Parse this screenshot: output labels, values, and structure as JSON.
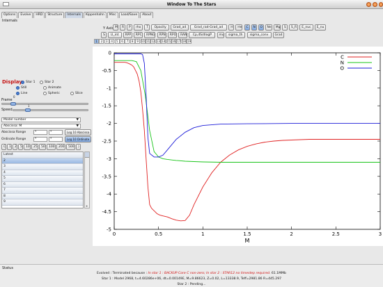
{
  "window": {
    "title": "Window To The Stars"
  },
  "tabs": [
    "Options",
    "Evolve",
    "HRD",
    "Structure",
    "Internals",
    "Kippenhahn",
    "Misc",
    "Load/Save",
    "About"
  ],
  "active_tab": "Internals",
  "section_title": "Internals",
  "y_axis_label": "Y Axis:",
  "y_buttons_row1": [
    "M",
    "R",
    "P",
    "rho",
    "T",
    "Opacity",
    "Grad_ad",
    "Grad_rad-Grad_ad",
    "H",
    "He",
    "C",
    "N",
    "O",
    "Ne",
    "Mg",
    "S",
    "S_R",
    "E_nuc",
    "E_nu"
  ],
  "y_buttons_row1_selected": [
    "C",
    "N",
    "O"
  ],
  "y_buttons_row2": [
    "S",
    "U_int",
    "RPP",
    "RPC",
    "RPNG",
    "RPN",
    "RPO",
    "RAN",
    "Cp,dS/dlogP",
    "mu",
    "sigma_th",
    "sigma_conv",
    "Grad"
  ],
  "num_buttons": [
    "1",
    "2",
    "3",
    "4",
    "5",
    "6",
    "7",
    "8",
    "9",
    "10",
    "11",
    "12",
    "13",
    "14",
    "15",
    "16",
    "17",
    "18",
    "19"
  ],
  "num_buttons_selected": "1",
  "display": {
    "title": "Display",
    "star1": "Star 1",
    "star2": "Star 2",
    "still": "Still",
    "animate": "Animate",
    "line": "Line",
    "sphere": "Spheric",
    "slice": "Slice",
    "frame_label": "Frame",
    "frame_value": "0",
    "speed_label": "Speed",
    "speed_value": "1"
  },
  "abscissa": {
    "model_select": "Model number",
    "abscissa_select": "Abscissa: M",
    "abscissa_range_label": "Abscissa Range",
    "ordinate_range_label": "Ordinate Range",
    "range_fields": [
      "*",
      "*"
    ],
    "log10_abscissa": "Log 10 Abscissa",
    "log10_ordinate": "Log 10 Ordinate"
  },
  "quick_buttons": [
    "C",
    "1",
    "2",
    "5",
    "10",
    "25",
    "50",
    "100",
    "200",
    "500",
    ")"
  ],
  "model_list": [
    "Latest",
    "2",
    "3",
    "4",
    "5",
    "6",
    "7",
    "8",
    "9"
  ],
  "model_list_selected": "2",
  "status": {
    "label": "Status",
    "line1_prefix": "Evolved : Terminated because :",
    "line1_red": "In star 1 : BACKUP Core C non-zero; In star 2 : STAR12 no timestep required.",
    "line1_suffix": "61.1MMb",
    "line2": "Star 1 : Model 2968, t=4.60286e+06, dt=0.00149E, M=9.86623, Z=0.02, L=13338.9, Teff=2981.86 R=445.297",
    "line3": "Star 2 : Pending..."
  },
  "chart_data": {
    "type": "line",
    "title": "",
    "xlabel": "M",
    "ylabel": "",
    "xlim": [
      0,
      3
    ],
    "ylim": [
      -5,
      0
    ],
    "x_ticks": [
      "0",
      "0.5",
      "1",
      "1.5",
      "2",
      "2.5",
      "3"
    ],
    "y_ticks": [
      "0",
      "-0.5",
      "-1",
      "-1.5",
      "-2",
      "-2.5",
      "-3",
      "-3.5",
      "-4",
      "-4.5",
      "-5"
    ],
    "legend": "top-right",
    "grid": false,
    "series": [
      {
        "name": "C",
        "color": "#e02020",
        "x": [
          0,
          0.02,
          0.04,
          0.06,
          0.08,
          0.1,
          0.12,
          0.14,
          0.16,
          0.18,
          0.2,
          0.22,
          0.24,
          0.26,
          0.28,
          0.3,
          0.32,
          0.34,
          0.36,
          0.38,
          0.4,
          0.42,
          0.44,
          0.46,
          0.48,
          0.5,
          0.52,
          0.55,
          0.6,
          0.65,
          0.7,
          0.75,
          0.8,
          0.85,
          0.9,
          1.0,
          1.1,
          1.2,
          1.3,
          1.4,
          1.5,
          1.6,
          1.7,
          1.8,
          1.9,
          2.0,
          2.2,
          2.5,
          2.8,
          3.0
        ],
        "y": [
          -0.27,
          -0.27,
          -0.27,
          -0.27,
          -0.27,
          -0.27,
          -0.27,
          -0.28,
          -0.3,
          -0.32,
          -0.35,
          -0.4,
          -0.5,
          -0.6,
          -0.8,
          -1.1,
          -1.6,
          -2.2,
          -3.0,
          -3.8,
          -4.3,
          -4.4,
          -4.45,
          -4.5,
          -4.55,
          -4.58,
          -4.6,
          -4.62,
          -4.65,
          -4.7,
          -4.74,
          -4.76,
          -4.75,
          -4.6,
          -4.3,
          -3.8,
          -3.4,
          -3.1,
          -2.9,
          -2.75,
          -2.65,
          -2.58,
          -2.53,
          -2.5,
          -2.48,
          -2.47,
          -2.45,
          -2.45,
          -2.45,
          -2.45
        ]
      },
      {
        "name": "N",
        "color": "#18c418",
        "x": [
          0,
          0.02,
          0.04,
          0.06,
          0.08,
          0.1,
          0.12,
          0.14,
          0.16,
          0.18,
          0.2,
          0.25,
          0.3,
          0.35,
          0.4,
          0.45,
          0.5,
          0.55,
          0.6,
          0.7,
          0.8,
          0.9,
          1.0,
          1.2,
          1.4,
          1.6,
          1.8,
          2.0,
          2.5,
          3.0
        ],
        "y": [
          -0.22,
          -0.22,
          -0.22,
          -0.22,
          -0.22,
          -0.22,
          -0.22,
          -0.22,
          -0.22,
          -0.22,
          -0.22,
          -0.25,
          -0.5,
          -1.2,
          -2.2,
          -2.8,
          -2.95,
          -3.0,
          -3.02,
          -3.05,
          -3.07,
          -3.08,
          -3.09,
          -3.1,
          -3.1,
          -3.1,
          -3.1,
          -3.1,
          -3.1,
          -3.1
        ]
      },
      {
        "name": "O",
        "color": "#1a1ad8",
        "x": [
          0,
          0.02,
          0.04,
          0.06,
          0.08,
          0.1,
          0.12,
          0.14,
          0.16,
          0.18,
          0.2,
          0.22,
          0.24,
          0.26,
          0.28,
          0.3,
          0.32,
          0.34,
          0.36,
          0.38,
          0.4,
          0.45,
          0.5,
          0.55,
          0.6,
          0.7,
          0.8,
          0.9,
          1.0,
          1.2,
          1.5,
          2.0,
          2.5,
          3.0
        ],
        "y": [
          -0.03,
          -0.03,
          -0.03,
          -0.03,
          -0.03,
          -0.03,
          -0.03,
          -0.03,
          -0.03,
          -0.03,
          -0.03,
          -0.03,
          -0.03,
          -0.03,
          -0.03,
          -0.03,
          -0.05,
          -0.3,
          -1.2,
          -2.4,
          -2.85,
          -2.95,
          -2.95,
          -2.9,
          -2.75,
          -2.45,
          -2.25,
          -2.12,
          -2.06,
          -2.02,
          -2.01,
          -2.0,
          -2.0,
          -2.0
        ]
      }
    ]
  }
}
